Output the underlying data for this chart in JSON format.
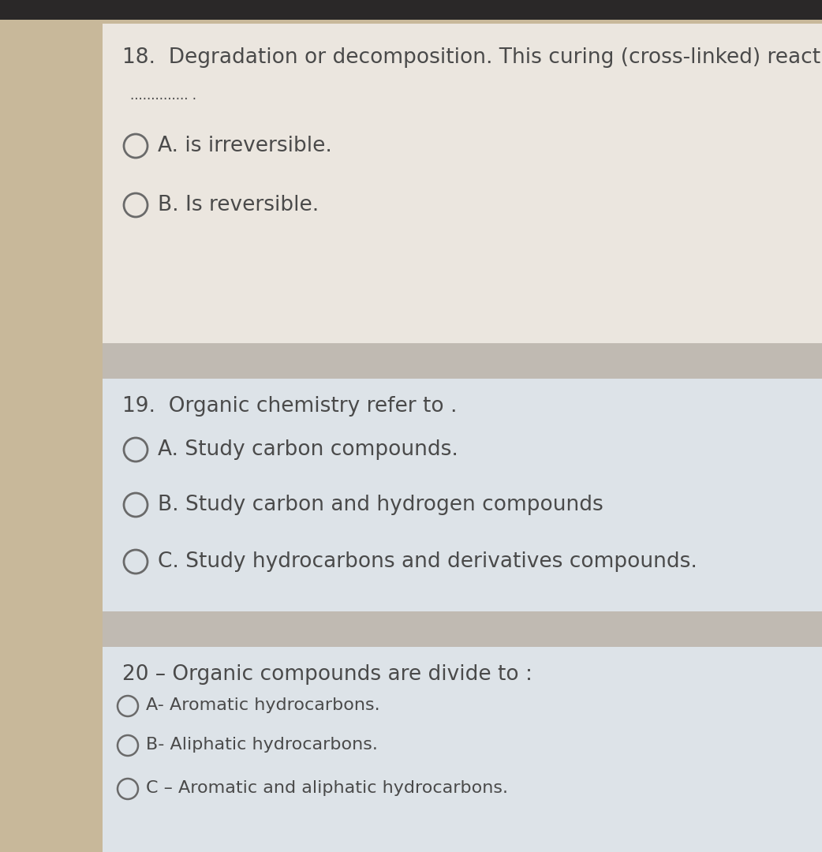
{
  "bg_overall": "#c8b89a",
  "bg_card1": "#ebe6df",
  "bg_card2": "#dde3e8",
  "bg_card3": "#dde3e8",
  "bg_gap": "#c0bab2",
  "top_bar_color": "#2a2828",
  "text_color": "#4a4a4a",
  "circle_color": "#6a6a6a",
  "q18_num": "18.",
  "q18_text": "  Degradation or decomposition. This curing (cross-linked) reaction",
  "q18_dots": ".............. .",
  "q18_options": [
    "A. is irreversible.",
    "B. Is reversible."
  ],
  "q19_num": "19.",
  "q19_text": "  Organic chemistry refer to .",
  "q19_options": [
    "A. Study carbon compounds.",
    "B. Study carbon and hydrogen compounds",
    "C. Study hydrocarbons and derivatives compounds."
  ],
  "q20_num": "20",
  "q20_text": " – Organic compounds are divide to :",
  "q20_options": [
    "A- Aromatic hydrocarbons.",
    "B- Aliphatic hydrocarbons.",
    "C – Aromatic and aliphatic hydrocarbons."
  ],
  "figsize": [
    10.42,
    10.8
  ],
  "dpi": 100
}
